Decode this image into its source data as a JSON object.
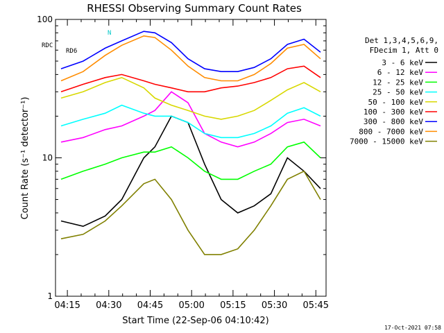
{
  "chart_data": {
    "type": "line",
    "title": "RHESSI Observing Summary Count Rates",
    "xlabel": "Start Time (22-Sep-06 04:10:42)",
    "ylabel": "Count Rate (s⁻¹ detector⁻¹)",
    "y_scale": "log",
    "ylim": [
      1,
      100
    ],
    "xlim_minutes": [
      0,
      98
    ],
    "x_ticks": [
      {
        "label": "04:15",
        "minute": 4.3
      },
      {
        "label": "04:30",
        "minute": 19.3
      },
      {
        "label": "04:45",
        "minute": 34.3
      },
      {
        "label": "05:00",
        "minute": 49.3
      },
      {
        "label": "05:15",
        "minute": 64.3
      },
      {
        "label": "05:30",
        "minute": 79.3
      },
      {
        "label": "05:45",
        "minute": 94.3
      }
    ],
    "y_ticks": [
      {
        "label": "1",
        "value": 1
      },
      {
        "label": "10",
        "value": 10
      },
      {
        "label": "100",
        "value": 100
      }
    ],
    "legend_header": [
      "Det 1,3,4,5,6,9,",
      "FDecim 1, Att 0"
    ],
    "legend_position": "right",
    "annotations": {
      "rdc": "RDC",
      "rd6": "RD6",
      "n": "N",
      "timestamp": "17-Oct-2021 07:58"
    },
    "series": [
      {
        "name": "3 - 6 keV",
        "color": "#000000",
        "x": [
          2,
          10,
          18,
          24,
          32,
          36,
          42,
          48,
          54,
          60,
          66,
          72,
          78,
          84,
          90,
          96
        ],
        "y": [
          3.5,
          3.2,
          3.8,
          5.0,
          10,
          12,
          20,
          18,
          9,
          5,
          4,
          4.5,
          5.5,
          10,
          8,
          6
        ]
      },
      {
        "name": "6 - 12 keV",
        "color": "#ff00ff",
        "x": [
          2,
          10,
          18,
          24,
          32,
          36,
          42,
          48,
          54,
          60,
          66,
          72,
          78,
          84,
          90,
          96
        ],
        "y": [
          13,
          14,
          16,
          17,
          20,
          22,
          30,
          25,
          15,
          13,
          12,
          13,
          15,
          18,
          19,
          17
        ]
      },
      {
        "name": "12 - 25 keV",
        "color": "#00ff00",
        "x": [
          2,
          10,
          18,
          24,
          32,
          36,
          42,
          48,
          54,
          60,
          66,
          72,
          78,
          84,
          90,
          96
        ],
        "y": [
          7,
          8,
          9,
          10,
          11,
          11,
          12,
          10,
          8,
          7,
          7,
          8,
          9,
          12,
          13,
          10
        ]
      },
      {
        "name": "25 - 50 keV",
        "color": "#00ffff",
        "x": [
          2,
          10,
          18,
          24,
          32,
          36,
          42,
          48,
          54,
          60,
          66,
          72,
          78,
          84,
          90,
          96
        ],
        "y": [
          17,
          19,
          21,
          24,
          21,
          20,
          20,
          18,
          15,
          14,
          14,
          15,
          17,
          21,
          23,
          20
        ]
      },
      {
        "name": "50 - 100 keV",
        "color": "#d8d800",
        "x": [
          2,
          10,
          18,
          24,
          32,
          36,
          42,
          48,
          54,
          60,
          66,
          72,
          78,
          84,
          90,
          96
        ],
        "y": [
          27,
          30,
          35,
          38,
          32,
          27,
          24,
          22,
          20,
          19,
          20,
          22,
          26,
          31,
          35,
          30
        ]
      },
      {
        "name": "100 - 300 keV",
        "color": "#ff0000",
        "x": [
          2,
          10,
          18,
          24,
          32,
          36,
          42,
          48,
          54,
          60,
          66,
          72,
          78,
          84,
          90,
          96
        ],
        "y": [
          30,
          34,
          38,
          40,
          36,
          34,
          32,
          30,
          30,
          32,
          33,
          35,
          38,
          44,
          46,
          38
        ]
      },
      {
        "name": "300 - 800 keV",
        "color": "#0000ff",
        "x": [
          2,
          10,
          18,
          24,
          32,
          36,
          42,
          48,
          54,
          60,
          66,
          72,
          78,
          84,
          90,
          96
        ],
        "y": [
          44,
          50,
          62,
          70,
          82,
          80,
          68,
          52,
          44,
          42,
          42,
          45,
          52,
          66,
          72,
          58
        ]
      },
      {
        "name": "800 - 7000 keV",
        "color": "#ff8c00",
        "x": [
          2,
          10,
          18,
          24,
          32,
          36,
          42,
          48,
          54,
          60,
          66,
          72,
          78,
          84,
          90,
          96
        ],
        "y": [
          36,
          42,
          55,
          65,
          76,
          74,
          60,
          46,
          38,
          36,
          36,
          40,
          48,
          62,
          66,
          52
        ]
      },
      {
        "name": "7000 - 15000 keV",
        "color": "#808000",
        "x": [
          2,
          10,
          18,
          24,
          32,
          36,
          42,
          48,
          54,
          60,
          66,
          72,
          78,
          84,
          90,
          96
        ],
        "y": [
          2.6,
          2.8,
          3.5,
          4.5,
          6.5,
          7.0,
          5.0,
          3.0,
          2.0,
          2.0,
          2.2,
          3.0,
          4.5,
          7.0,
          8.0,
          5.0
        ]
      }
    ]
  }
}
